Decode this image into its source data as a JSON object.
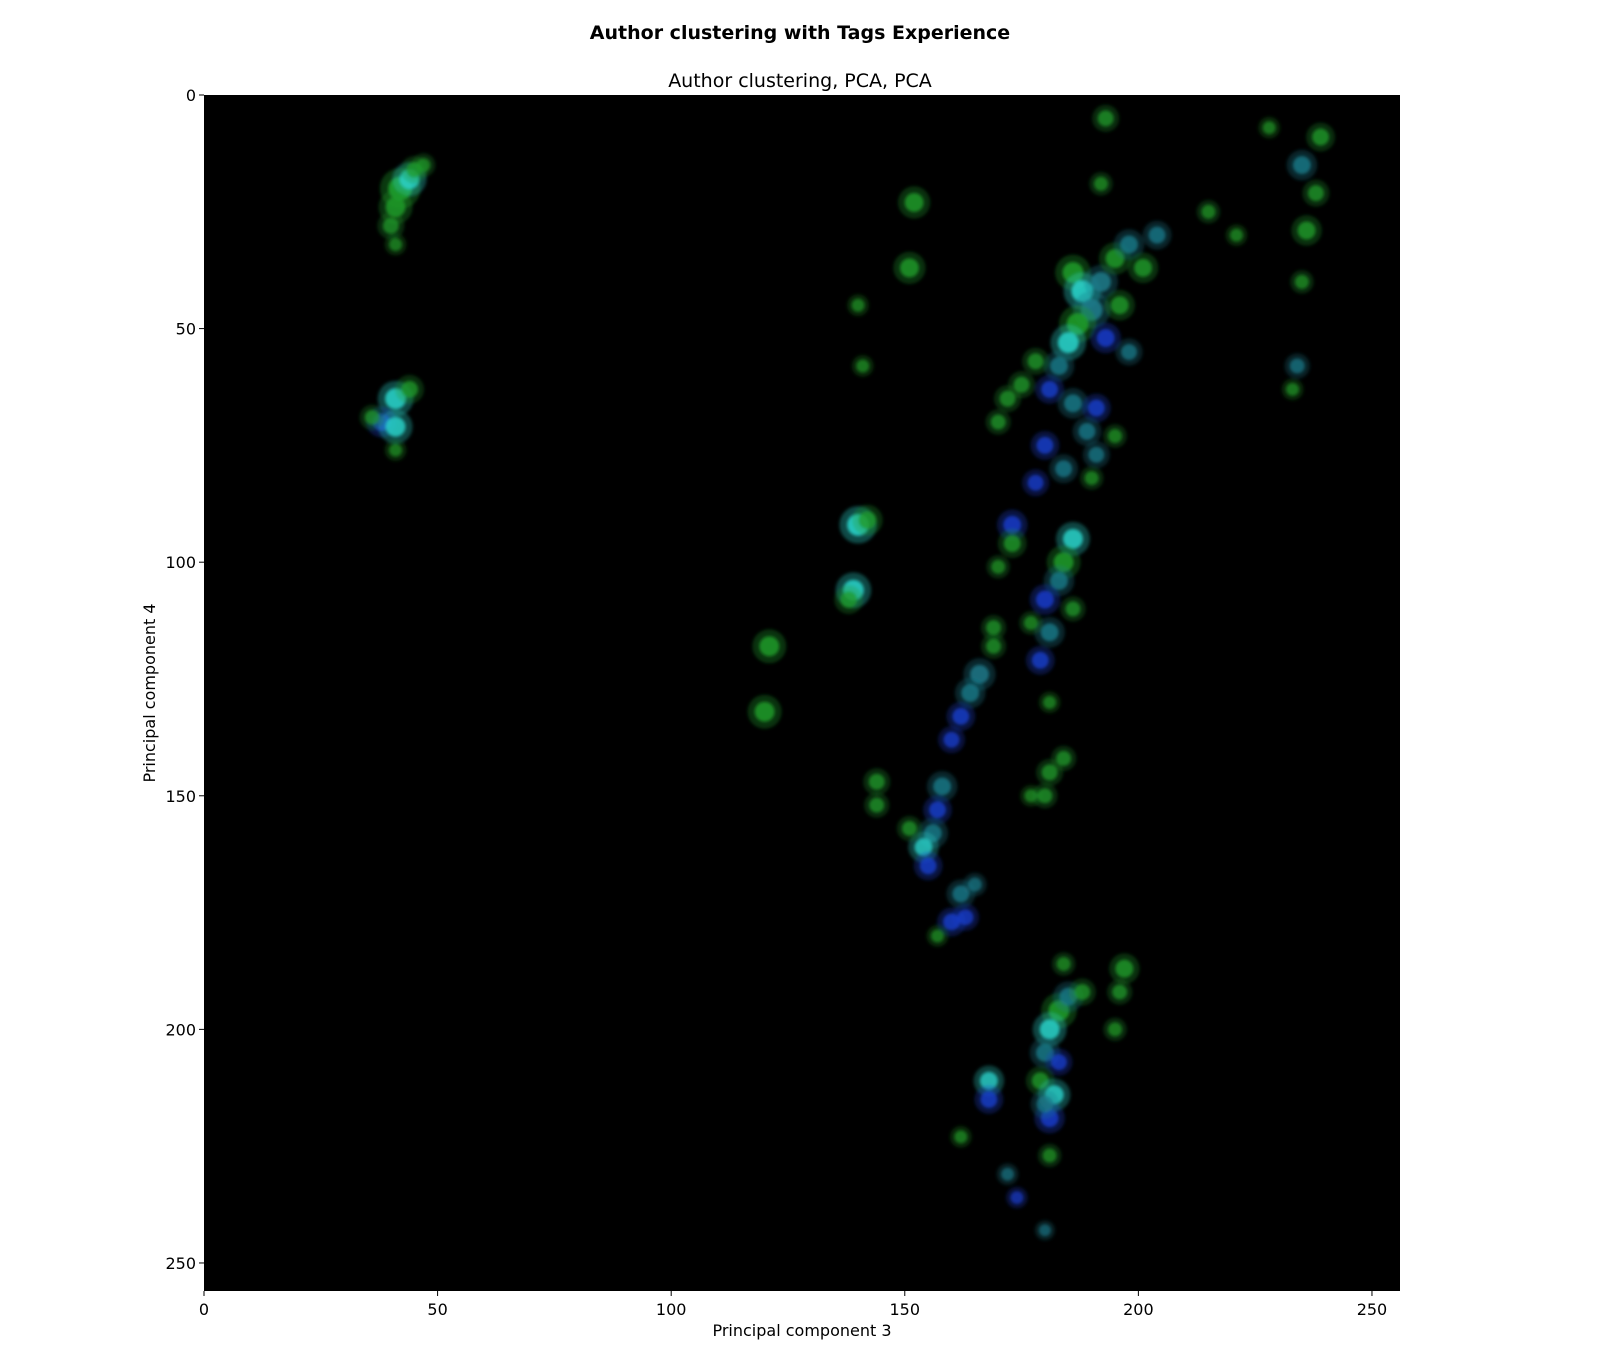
{
  "figure": {
    "suptitle": "Author clustering with Tags Experience"
  },
  "chart_data": {
    "type": "heatmap",
    "title": "Author clustering, PCA, PCA",
    "xlabel": "Principal component 3",
    "ylabel": "Principal component 4",
    "xlim": [
      0,
      256
    ],
    "ylim": [
      256,
      0
    ],
    "y_inverted": true,
    "x_ticks": [
      "0",
      "50",
      "100",
      "150",
      "200",
      "250"
    ],
    "y_ticks": [
      "0",
      "50",
      "100",
      "150",
      "200",
      "250"
    ],
    "grid": false,
    "legend": "none",
    "colors": {
      "background": "#000000",
      "green": "#1f9a2a",
      "cyan": "#2ad0c8",
      "blue": "#1a3fd0",
      "teal": "#1c7a8a"
    },
    "points": [
      {
        "x": 42,
        "y": 20,
        "c": "green",
        "s": 1.6
      },
      {
        "x": 44,
        "y": 18,
        "c": "cyan",
        "s": 1.2
      },
      {
        "x": 41,
        "y": 24,
        "c": "green",
        "s": 1.2
      },
      {
        "x": 45,
        "y": 16,
        "c": "green",
        "s": 0.8
      },
      {
        "x": 40,
        "y": 28,
        "c": "green",
        "s": 0.8
      },
      {
        "x": 47,
        "y": 15,
        "c": "green",
        "s": 0.6
      },
      {
        "x": 41,
        "y": 32,
        "c": "green",
        "s": 0.5
      },
      {
        "x": 41,
        "y": 65,
        "c": "cyan",
        "s": 1.3
      },
      {
        "x": 44,
        "y": 63,
        "c": "green",
        "s": 0.9
      },
      {
        "x": 38,
        "y": 70,
        "c": "blue",
        "s": 1.0
      },
      {
        "x": 41,
        "y": 71,
        "c": "cyan",
        "s": 1.2
      },
      {
        "x": 36,
        "y": 69,
        "c": "green",
        "s": 0.7
      },
      {
        "x": 41,
        "y": 76,
        "c": "green",
        "s": 0.5
      },
      {
        "x": 152,
        "y": 23,
        "c": "green",
        "s": 1.1
      },
      {
        "x": 151,
        "y": 37,
        "c": "green",
        "s": 1.1
      },
      {
        "x": 140,
        "y": 45,
        "c": "green",
        "s": 0.5
      },
      {
        "x": 141,
        "y": 58,
        "c": "green",
        "s": 0.5
      },
      {
        "x": 140,
        "y": 92,
        "c": "cyan",
        "s": 1.4
      },
      {
        "x": 142,
        "y": 91,
        "c": "green",
        "s": 1.0
      },
      {
        "x": 139,
        "y": 106,
        "c": "cyan",
        "s": 1.3
      },
      {
        "x": 138,
        "y": 108,
        "c": "green",
        "s": 0.9
      },
      {
        "x": 121,
        "y": 118,
        "c": "green",
        "s": 1.2
      },
      {
        "x": 120,
        "y": 132,
        "c": "green",
        "s": 1.2
      },
      {
        "x": 193,
        "y": 5,
        "c": "green",
        "s": 0.8
      },
      {
        "x": 192,
        "y": 19,
        "c": "green",
        "s": 0.6
      },
      {
        "x": 235,
        "y": 15,
        "c": "teal",
        "s": 1.0
      },
      {
        "x": 239,
        "y": 9,
        "c": "green",
        "s": 0.9
      },
      {
        "x": 238,
        "y": 21,
        "c": "green",
        "s": 0.8
      },
      {
        "x": 236,
        "y": 29,
        "c": "green",
        "s": 1.0
      },
      {
        "x": 235,
        "y": 40,
        "c": "green",
        "s": 0.6
      },
      {
        "x": 234,
        "y": 58,
        "c": "teal",
        "s": 0.7
      },
      {
        "x": 233,
        "y": 63,
        "c": "green",
        "s": 0.5
      },
      {
        "x": 228,
        "y": 7,
        "c": "green",
        "s": 0.5
      },
      {
        "x": 215,
        "y": 25,
        "c": "green",
        "s": 0.6
      },
      {
        "x": 221,
        "y": 30,
        "c": "green",
        "s": 0.5
      },
      {
        "x": 186,
        "y": 38,
        "c": "green",
        "s": 1.3
      },
      {
        "x": 188,
        "y": 42,
        "c": "cyan",
        "s": 1.4
      },
      {
        "x": 190,
        "y": 46,
        "c": "teal",
        "s": 1.4
      },
      {
        "x": 187,
        "y": 49,
        "c": "green",
        "s": 1.4
      },
      {
        "x": 185,
        "y": 53,
        "c": "cyan",
        "s": 1.3
      },
      {
        "x": 192,
        "y": 40,
        "c": "teal",
        "s": 1.2
      },
      {
        "x": 195,
        "y": 35,
        "c": "green",
        "s": 1.1
      },
      {
        "x": 198,
        "y": 32,
        "c": "teal",
        "s": 1.0
      },
      {
        "x": 201,
        "y": 37,
        "c": "green",
        "s": 1.0
      },
      {
        "x": 204,
        "y": 30,
        "c": "teal",
        "s": 0.9
      },
      {
        "x": 196,
        "y": 45,
        "c": "green",
        "s": 1.0
      },
      {
        "x": 198,
        "y": 55,
        "c": "teal",
        "s": 0.8
      },
      {
        "x": 193,
        "y": 52,
        "c": "blue",
        "s": 1.0
      },
      {
        "x": 183,
        "y": 58,
        "c": "teal",
        "s": 1.0
      },
      {
        "x": 181,
        "y": 63,
        "c": "blue",
        "s": 0.9
      },
      {
        "x": 186,
        "y": 66,
        "c": "teal",
        "s": 1.0
      },
      {
        "x": 191,
        "y": 67,
        "c": "blue",
        "s": 0.9
      },
      {
        "x": 189,
        "y": 72,
        "c": "teal",
        "s": 0.9
      },
      {
        "x": 178,
        "y": 57,
        "c": "green",
        "s": 0.8
      },
      {
        "x": 175,
        "y": 62,
        "c": "green",
        "s": 0.8
      },
      {
        "x": 172,
        "y": 65,
        "c": "green",
        "s": 0.8
      },
      {
        "x": 170,
        "y": 70,
        "c": "green",
        "s": 0.7
      },
      {
        "x": 180,
        "y": 75,
        "c": "blue",
        "s": 0.9
      },
      {
        "x": 184,
        "y": 80,
        "c": "teal",
        "s": 0.9
      },
      {
        "x": 178,
        "y": 83,
        "c": "blue",
        "s": 0.8
      },
      {
        "x": 191,
        "y": 77,
        "c": "teal",
        "s": 0.8
      },
      {
        "x": 195,
        "y": 73,
        "c": "green",
        "s": 0.6
      },
      {
        "x": 190,
        "y": 82,
        "c": "green",
        "s": 0.6
      },
      {
        "x": 186,
        "y": 95,
        "c": "cyan",
        "s": 1.2
      },
      {
        "x": 184,
        "y": 100,
        "c": "green",
        "s": 1.2
      },
      {
        "x": 183,
        "y": 104,
        "c": "teal",
        "s": 1.0
      },
      {
        "x": 180,
        "y": 108,
        "c": "blue",
        "s": 1.0
      },
      {
        "x": 186,
        "y": 110,
        "c": "green",
        "s": 0.7
      },
      {
        "x": 181,
        "y": 115,
        "c": "teal",
        "s": 1.0
      },
      {
        "x": 179,
        "y": 121,
        "c": "blue",
        "s": 0.9
      },
      {
        "x": 177,
        "y": 113,
        "c": "green",
        "s": 0.6
      },
      {
        "x": 173,
        "y": 92,
        "c": "blue",
        "s": 1.0
      },
      {
        "x": 173,
        "y": 96,
        "c": "green",
        "s": 0.9
      },
      {
        "x": 170,
        "y": 101,
        "c": "green",
        "s": 0.6
      },
      {
        "x": 169,
        "y": 114,
        "c": "green",
        "s": 0.7
      },
      {
        "x": 169,
        "y": 118,
        "c": "green",
        "s": 0.7
      },
      {
        "x": 166,
        "y": 124,
        "c": "teal",
        "s": 1.1
      },
      {
        "x": 164,
        "y": 128,
        "c": "teal",
        "s": 1.0
      },
      {
        "x": 162,
        "y": 133,
        "c": "blue",
        "s": 0.9
      },
      {
        "x": 160,
        "y": 138,
        "c": "blue",
        "s": 0.8
      },
      {
        "x": 181,
        "y": 130,
        "c": "green",
        "s": 0.5
      },
      {
        "x": 184,
        "y": 142,
        "c": "green",
        "s": 0.7
      },
      {
        "x": 181,
        "y": 145,
        "c": "green",
        "s": 0.8
      },
      {
        "x": 180,
        "y": 150,
        "c": "green",
        "s": 0.7
      },
      {
        "x": 177,
        "y": 150,
        "c": "green",
        "s": 0.5
      },
      {
        "x": 158,
        "y": 148,
        "c": "teal",
        "s": 1.0
      },
      {
        "x": 157,
        "y": 153,
        "c": "blue",
        "s": 0.9
      },
      {
        "x": 156,
        "y": 158,
        "c": "teal",
        "s": 1.0
      },
      {
        "x": 154,
        "y": 161,
        "c": "cyan",
        "s": 1.0
      },
      {
        "x": 155,
        "y": 165,
        "c": "blue",
        "s": 0.9
      },
      {
        "x": 151,
        "y": 157,
        "c": "green",
        "s": 0.7
      },
      {
        "x": 144,
        "y": 147,
        "c": "green",
        "s": 0.8
      },
      {
        "x": 144,
        "y": 152,
        "c": "green",
        "s": 0.7
      },
      {
        "x": 162,
        "y": 171,
        "c": "teal",
        "s": 0.9
      },
      {
        "x": 160,
        "y": 177,
        "c": "blue",
        "s": 0.9
      },
      {
        "x": 163,
        "y": 176,
        "c": "blue",
        "s": 0.8
      },
      {
        "x": 165,
        "y": 169,
        "c": "teal",
        "s": 0.6
      },
      {
        "x": 157,
        "y": 180,
        "c": "green",
        "s": 0.5
      },
      {
        "x": 183,
        "y": 196,
        "c": "green",
        "s": 1.3
      },
      {
        "x": 181,
        "y": 200,
        "c": "cyan",
        "s": 1.2
      },
      {
        "x": 185,
        "y": 193,
        "c": "teal",
        "s": 1.0
      },
      {
        "x": 180,
        "y": 205,
        "c": "teal",
        "s": 1.0
      },
      {
        "x": 183,
        "y": 207,
        "c": "blue",
        "s": 0.8
      },
      {
        "x": 188,
        "y": 192,
        "c": "green",
        "s": 0.8
      },
      {
        "x": 197,
        "y": 187,
        "c": "green",
        "s": 1.0
      },
      {
        "x": 196,
        "y": 192,
        "c": "green",
        "s": 0.7
      },
      {
        "x": 195,
        "y": 200,
        "c": "green",
        "s": 0.6
      },
      {
        "x": 184,
        "y": 186,
        "c": "green",
        "s": 0.6
      },
      {
        "x": 179,
        "y": 211,
        "c": "green",
        "s": 0.9
      },
      {
        "x": 182,
        "y": 214,
        "c": "cyan",
        "s": 1.1
      },
      {
        "x": 181,
        "y": 219,
        "c": "blue",
        "s": 1.0
      },
      {
        "x": 180,
        "y": 216,
        "c": "teal",
        "s": 0.9
      },
      {
        "x": 168,
        "y": 211,
        "c": "cyan",
        "s": 1.0
      },
      {
        "x": 168,
        "y": 215,
        "c": "blue",
        "s": 0.9
      },
      {
        "x": 181,
        "y": 227,
        "c": "green",
        "s": 0.6
      },
      {
        "x": 162,
        "y": 223,
        "c": "green",
        "s": 0.5
      },
      {
        "x": 172,
        "y": 231,
        "c": "teal",
        "s": 0.5
      },
      {
        "x": 174,
        "y": 236,
        "c": "blue",
        "s": 0.5
      },
      {
        "x": 180,
        "y": 243,
        "c": "teal",
        "s": 0.4
      }
    ]
  }
}
